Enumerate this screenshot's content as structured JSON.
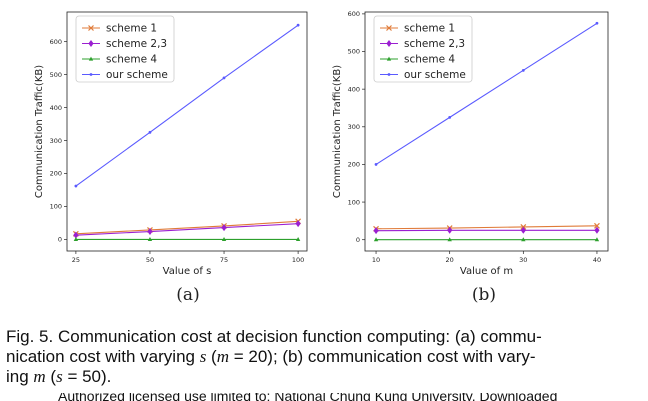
{
  "chart_data": [
    {
      "type": "line",
      "panel_label": "(a)",
      "xlabel": "Value of s",
      "ylabel": "Communication Traffic(KB)",
      "x": [
        25,
        50,
        75,
        100
      ],
      "xticks": [
        "25",
        "50",
        "75",
        "100"
      ],
      "xlim": [
        22,
        103
      ],
      "yticks": [
        "0",
        "100",
        "200",
        "300",
        "400",
        "500",
        "600"
      ],
      "ylim": [
        -35,
        690
      ],
      "legend_position": "top-left",
      "grid": false,
      "series": [
        {
          "name": "scheme 1",
          "color": "#e07b39",
          "marker": "x",
          "values": [
            17,
            29,
            41,
            55
          ]
        },
        {
          "name": "scheme 2,3",
          "color": "#9b1fd1",
          "marker": "diamond",
          "values": [
            13,
            24,
            36,
            48
          ]
        },
        {
          "name": "scheme 4",
          "color": "#2ca02c",
          "marker": "triangle",
          "values": [
            0,
            0,
            0,
            0
          ]
        },
        {
          "name": "our scheme",
          "color": "#5a5aff",
          "marker": "dot",
          "values": [
            162,
            325,
            490,
            650
          ]
        }
      ]
    },
    {
      "type": "line",
      "panel_label": "(b)",
      "xlabel": "Value of m",
      "ylabel": "Communication Traffic(KB)",
      "x": [
        10,
        20,
        30,
        40
      ],
      "xticks": [
        "10",
        "20",
        "30",
        "40"
      ],
      "xlim": [
        8.5,
        41.5
      ],
      "yticks": [
        "0",
        "100",
        "200",
        "300",
        "400",
        "500",
        "600"
      ],
      "ylim": [
        -30,
        605
      ],
      "legend_position": "top-left",
      "grid": false,
      "series": [
        {
          "name": "scheme 1",
          "color": "#e07b39",
          "marker": "x",
          "values": [
            29,
            31,
            34,
            37
          ]
        },
        {
          "name": "scheme 2,3",
          "color": "#9b1fd1",
          "marker": "diamond",
          "values": [
            24,
            25,
            25,
            25
          ]
        },
        {
          "name": "scheme 4",
          "color": "#2ca02c",
          "marker": "triangle",
          "values": [
            0,
            0,
            0,
            0
          ]
        },
        {
          "name": "our scheme",
          "color": "#5a5aff",
          "marker": "dot",
          "values": [
            200,
            325,
            450,
            575
          ]
        }
      ]
    }
  ],
  "caption": {
    "p1": "Fig. 5. Communication cost at decision function computing: (a) commu-",
    "p2": "nication cost with varying ",
    "s1": "s",
    "p3": " (",
    "m1": "m",
    "p4": " = 20); (b) communication cost with vary-",
    "p5": "ing ",
    "m2": "m",
    "p6": " (",
    "s2": "s",
    "p7": " = 50)."
  },
  "footnote": "Authorized licensed use limited to: National Chung Kung University. Downloaded"
}
